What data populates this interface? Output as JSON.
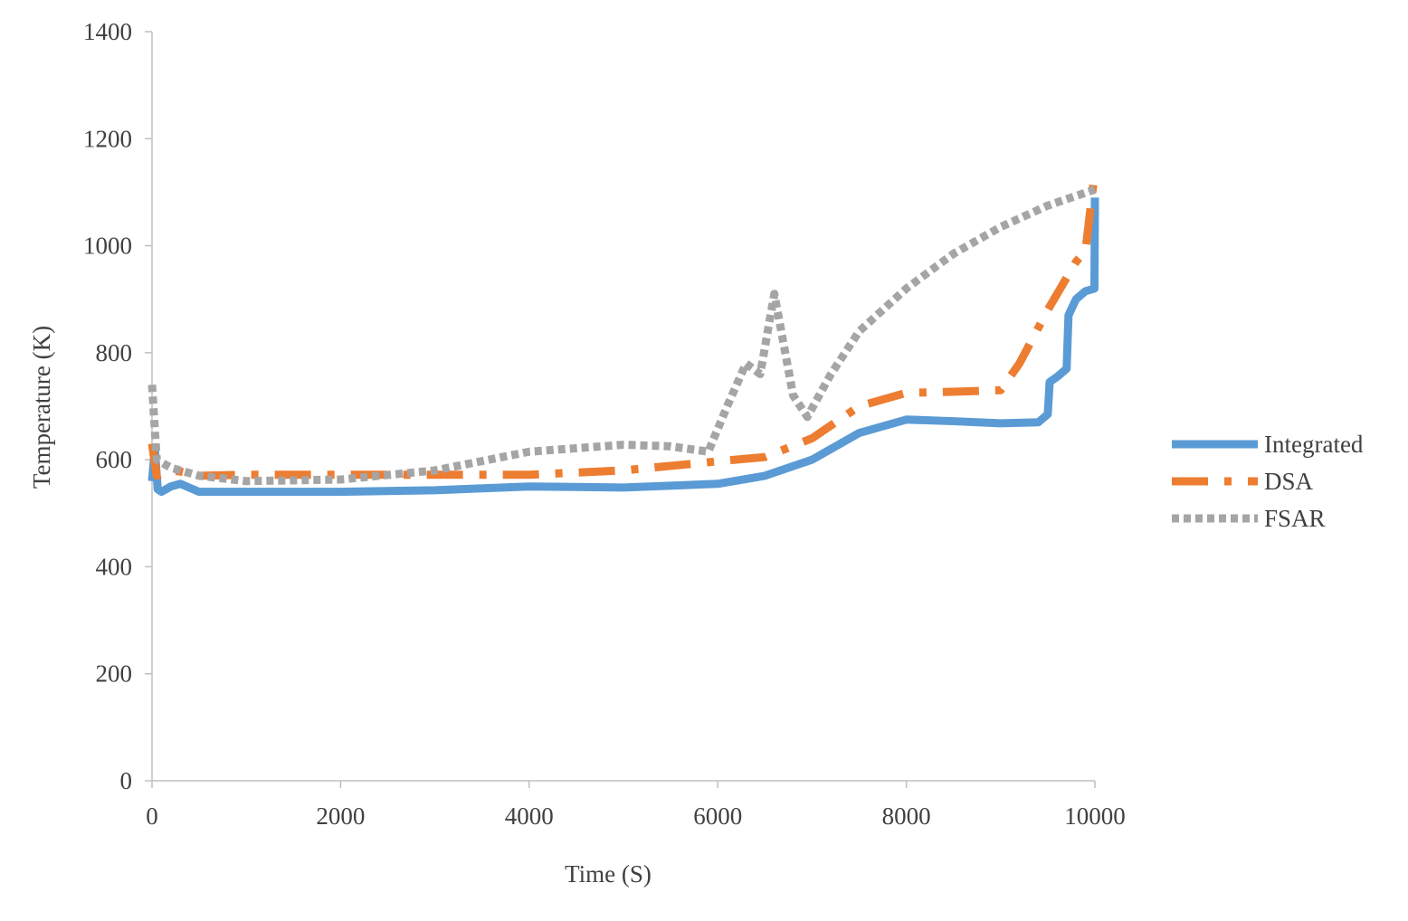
{
  "chart_data": {
    "type": "line",
    "xlabel": "Time (S)",
    "ylabel": "Temperature (K)",
    "xlim": [
      0,
      10000
    ],
    "xticks": [
      0,
      2000,
      4000,
      6000,
      8000,
      10000
    ],
    "ylim": [
      0,
      1400
    ],
    "yticks": [
      0,
      200,
      400,
      600,
      800,
      1000,
      1200,
      1400
    ],
    "legend": "right",
    "series": [
      {
        "name": "Integrated",
        "color": "#5b9bd5",
        "style": "solid",
        "x": [
          0,
          30,
          60,
          100,
          200,
          300,
          500,
          1000,
          2000,
          3000,
          4000,
          5000,
          6000,
          6500,
          7000,
          7500,
          8000,
          8500,
          9000,
          9400,
          9500,
          9520,
          9600,
          9700,
          9720,
          9800,
          9900,
          9995,
          10000
        ],
        "values": [
          560,
          620,
          545,
          540,
          550,
          555,
          540,
          540,
          540,
          543,
          550,
          548,
          555,
          570,
          600,
          650,
          675,
          672,
          668,
          670,
          685,
          745,
          755,
          770,
          870,
          900,
          915,
          920,
          1090
        ]
      },
      {
        "name": "DSA",
        "color": "#ed7d31",
        "style": "dashdot",
        "x": [
          0,
          50,
          200,
          300,
          500,
          1000,
          2000,
          3000,
          4000,
          5000,
          6000,
          6500,
          7000,
          7500,
          8000,
          8500,
          9000,
          9200,
          9500,
          9800,
          9900,
          10000
        ],
        "values": [
          630,
          570,
          580,
          578,
          570,
          572,
          572,
          572,
          572,
          580,
          597,
          605,
          640,
          700,
          725,
          727,
          730,
          780,
          880,
          970,
          990,
          1140
        ]
      },
      {
        "name": "FSAR",
        "color": "#a5a5a5",
        "style": "dot",
        "x": [
          0,
          50,
          200,
          500,
          1000,
          2000,
          3000,
          4000,
          5000,
          5500,
          5900,
          6100,
          6300,
          6450,
          6600,
          6800,
          6950,
          7200,
          7500,
          8000,
          8500,
          9000,
          9500,
          10000
        ],
        "values": [
          740,
          600,
          585,
          570,
          560,
          563,
          580,
          615,
          628,
          625,
          615,
          700,
          780,
          760,
          910,
          720,
          680,
          760,
          840,
          920,
          985,
          1035,
          1075,
          1105
        ]
      }
    ]
  }
}
